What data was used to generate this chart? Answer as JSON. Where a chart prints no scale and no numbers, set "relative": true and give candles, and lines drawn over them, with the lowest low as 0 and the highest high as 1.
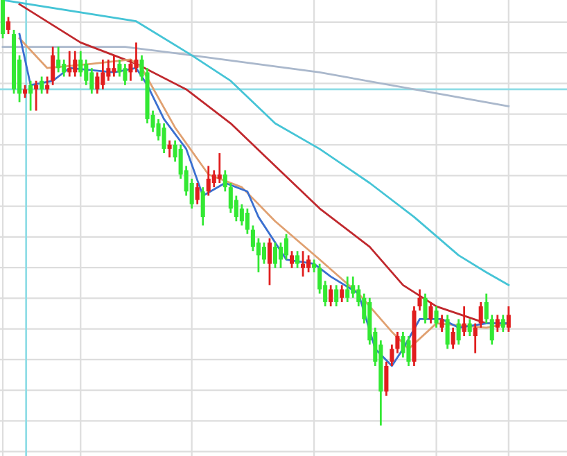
{
  "chart_data": {
    "type": "candlestick",
    "relative": true,
    "grid": true,
    "categories": [
      null,
      null,
      null,
      null,
      null,
      null,
      null,
      null,
      null,
      null,
      null,
      null,
      null,
      null,
      null,
      null,
      null,
      null,
      null,
      null,
      null,
      null,
      null,
      null,
      null,
      null,
      null,
      null,
      null,
      null,
      null,
      null,
      null,
      null,
      null,
      null,
      null,
      null,
      null,
      null,
      null,
      null,
      null,
      null,
      null,
      null,
      null,
      null,
      null,
      null,
      null,
      null,
      null,
      null,
      null,
      null,
      null,
      null,
      null,
      null,
      null,
      null,
      null,
      null,
      null,
      null,
      null,
      null,
      null,
      null,
      null,
      null,
      null,
      null,
      null,
      null,
      null,
      null,
      null,
      null,
      null,
      null,
      null,
      null,
      null,
      null,
      null,
      null,
      null,
      null,
      null,
      null
    ],
    "colors": [
      "#33e833",
      "#e01e1e",
      "#33e833",
      "#33e833",
      "#e01e1e",
      "#33e833",
      "#e01e1e",
      "#33e833",
      "#e01e1e",
      "#e01e1e",
      "#33e833",
      "#33e833",
      "#e01e1e",
      "#e01e1e",
      "#33e833",
      "#33e833",
      "#33e833",
      "#e01e1e",
      "#e01e1e",
      "#e01e1e",
      "#e01e1e",
      "#33e833",
      "#33e833",
      "#e01e1e",
      "#e01e1e",
      "#33e833",
      "#33e833",
      "#33e833",
      "#33e833",
      "#33e833",
      "#e01e1e",
      "#33e833",
      "#33e833",
      "#33e833",
      "#33e833",
      "#e01e1e",
      "#33e833",
      "#e01e1e",
      "#e01e1e",
      "#e01e1e",
      "#33e833",
      "#33e833",
      "#33e833",
      "#33e833",
      "#33e833",
      "#33e833",
      "#33e833",
      "#33e833",
      "#e01e1e",
      "#33e833",
      "#33e833",
      "#33e833",
      "#e01e1e",
      "#33e833",
      "#e01e1e",
      "#e01e1e",
      "#33e833",
      "#33e833",
      "#33e833",
      "#e01e1e",
      "#33e833",
      "#e01e1e",
      "#33e833",
      "#33e833",
      "#33e833",
      "#33e833",
      "#33e833",
      "#33e833",
      "#33e833",
      "#e01e1e",
      "#e01e1e",
      "#e01e1e",
      "#33e833",
      "#33e833",
      "#e01e1e",
      "#e01e1e",
      "#33e833",
      "#e01e1e",
      "#33e833",
      "#e01e1e",
      "#33e833",
      "#e01e1e",
      "#33e833",
      "#e01e1e",
      "#33e833",
      "#e01e1e",
      "#e01e1e",
      "#33e833",
      "#33e833",
      "#e01e1e",
      "#33e833",
      "#e01e1e"
    ],
    "ohlc": [
      [
        1.0,
        1.0,
        0.91,
        0.92
      ],
      [
        0.93,
        0.96,
        0.92,
        0.95
      ],
      [
        0.92,
        0.93,
        0.78,
        0.79
      ],
      [
        0.86,
        0.87,
        0.76,
        0.78
      ],
      [
        0.78,
        0.8,
        0.77,
        0.79
      ],
      [
        0.8,
        0.81,
        0.74,
        0.78
      ],
      [
        0.79,
        0.81,
        0.74,
        0.8
      ],
      [
        0.81,
        0.82,
        0.78,
        0.79
      ],
      [
        0.79,
        0.82,
        0.78,
        0.8
      ],
      [
        0.81,
        0.89,
        0.8,
        0.87
      ],
      [
        0.86,
        0.89,
        0.83,
        0.84
      ],
      [
        0.85,
        0.86,
        0.82,
        0.83
      ],
      [
        0.83,
        0.88,
        0.82,
        0.84
      ],
      [
        0.83,
        0.88,
        0.82,
        0.86
      ],
      [
        0.86,
        0.88,
        0.82,
        0.83
      ],
      [
        0.85,
        0.86,
        0.8,
        0.81
      ],
      [
        0.83,
        0.84,
        0.78,
        0.79
      ],
      [
        0.79,
        0.83,
        0.78,
        0.82
      ],
      [
        0.8,
        0.86,
        0.79,
        0.83
      ],
      [
        0.82,
        0.86,
        0.81,
        0.84
      ],
      [
        0.83,
        0.87,
        0.82,
        0.84
      ],
      [
        0.85,
        0.86,
        0.82,
        0.83
      ],
      [
        0.84,
        0.85,
        0.8,
        0.81
      ],
      [
        0.83,
        0.86,
        0.81,
        0.85
      ],
      [
        0.84,
        0.9,
        0.83,
        0.86
      ],
      [
        0.86,
        0.87,
        0.81,
        0.82
      ],
      [
        0.83,
        0.84,
        0.71,
        0.72
      ],
      [
        0.73,
        0.74,
        0.69,
        0.7
      ],
      [
        0.71,
        0.72,
        0.67,
        0.68
      ],
      [
        0.7,
        0.71,
        0.64,
        0.65
      ],
      [
        0.65,
        0.67,
        0.63,
        0.66
      ],
      [
        0.66,
        0.67,
        0.62,
        0.63
      ],
      [
        0.65,
        0.66,
        0.58,
        0.59
      ],
      [
        0.6,
        0.61,
        0.54,
        0.55
      ],
      [
        0.57,
        0.58,
        0.51,
        0.52
      ],
      [
        0.53,
        0.57,
        0.52,
        0.56
      ],
      [
        0.55,
        0.56,
        0.47,
        0.49
      ],
      [
        0.55,
        0.61,
        0.54,
        0.58
      ],
      [
        0.57,
        0.6,
        0.56,
        0.59
      ],
      [
        0.58,
        0.64,
        0.57,
        0.59
      ],
      [
        0.59,
        0.6,
        0.55,
        0.56
      ],
      [
        0.56,
        0.57,
        0.5,
        0.51
      ],
      [
        0.53,
        0.54,
        0.48,
        0.49
      ],
      [
        0.51,
        0.52,
        0.47,
        0.48
      ],
      [
        0.5,
        0.51,
        0.45,
        0.46
      ],
      [
        0.46,
        0.47,
        0.41,
        0.42
      ],
      [
        0.43,
        0.44,
        0.36,
        0.4
      ],
      [
        0.42,
        0.43,
        0.38,
        0.39
      ],
      [
        0.38,
        0.44,
        0.33,
        0.43
      ],
      [
        0.42,
        0.43,
        0.37,
        0.38
      ],
      [
        0.42,
        0.43,
        0.37,
        0.39
      ],
      [
        0.44,
        0.45,
        0.39,
        0.4
      ],
      [
        0.38,
        0.41,
        0.37,
        0.4
      ],
      [
        0.4,
        0.41,
        0.37,
        0.38
      ],
      [
        0.37,
        0.41,
        0.35,
        0.38
      ],
      [
        0.37,
        0.4,
        0.36,
        0.39
      ],
      [
        0.38,
        0.39,
        0.36,
        0.37
      ],
      [
        0.37,
        0.38,
        0.31,
        0.32
      ],
      [
        0.33,
        0.34,
        0.28,
        0.29
      ],
      [
        0.29,
        0.33,
        0.28,
        0.32
      ],
      [
        0.32,
        0.33,
        0.28,
        0.29
      ],
      [
        0.3,
        0.33,
        0.29,
        0.32
      ],
      [
        0.32,
        0.35,
        0.29,
        0.3
      ],
      [
        0.33,
        0.35,
        0.3,
        0.31
      ],
      [
        0.32,
        0.33,
        0.28,
        0.29
      ],
      [
        0.3,
        0.31,
        0.24,
        0.25
      ],
      [
        0.29,
        0.3,
        0.19,
        0.2
      ],
      [
        0.22,
        0.23,
        0.14,
        0.15
      ],
      [
        0.19,
        0.2,
        0.0,
        0.08
      ],
      [
        0.08,
        0.15,
        0.07,
        0.14
      ],
      [
        0.15,
        0.19,
        0.14,
        0.18
      ],
      [
        0.18,
        0.22,
        0.17,
        0.21
      ],
      [
        0.21,
        0.22,
        0.16,
        0.17
      ],
      [
        0.2,
        0.21,
        0.14,
        0.15
      ],
      [
        0.15,
        0.28,
        0.14,
        0.27
      ],
      [
        0.28,
        0.32,
        0.27,
        0.3
      ],
      [
        0.3,
        0.31,
        0.24,
        0.25
      ],
      [
        0.25,
        0.29,
        0.24,
        0.28
      ],
      [
        0.27,
        0.28,
        0.23,
        0.24
      ],
      [
        0.23,
        0.26,
        0.22,
        0.25
      ],
      [
        0.25,
        0.26,
        0.18,
        0.19
      ],
      [
        0.19,
        0.23,
        0.18,
        0.22
      ],
      [
        0.24,
        0.25,
        0.19,
        0.2
      ],
      [
        0.22,
        0.28,
        0.21,
        0.24
      ],
      [
        0.24,
        0.25,
        0.21,
        0.22
      ],
      [
        0.21,
        0.24,
        0.17,
        0.23
      ],
      [
        0.24,
        0.29,
        0.23,
        0.28
      ],
      [
        0.29,
        0.31,
        0.24,
        0.25
      ],
      [
        0.25,
        0.26,
        0.19,
        0.2
      ],
      [
        0.23,
        0.26,
        0.22,
        0.25
      ],
      [
        0.25,
        0.26,
        0.22,
        0.23
      ],
      [
        0.23,
        0.28,
        0.22,
        0.26
      ]
    ],
    "series": [
      {
        "type": "line",
        "color": "#aab8cc",
        "values": [
          0.89,
          null,
          null,
          null,
          null,
          null,
          null,
          null,
          null,
          null,
          null,
          null,
          null,
          null,
          null,
          null,
          null,
          null,
          null,
          null,
          null,
          null,
          0.89,
          null,
          null,
          null,
          null,
          null,
          null,
          null,
          null,
          null,
          null,
          null,
          0.87,
          null,
          null,
          null,
          null,
          null,
          null,
          null,
          null,
          null,
          null,
          null,
          null,
          null,
          null,
          null,
          null,
          null,
          null,
          null,
          null,
          null,
          null,
          0.83,
          null,
          null,
          null,
          null,
          null,
          null,
          null,
          null,
          null,
          null,
          null,
          null,
          null,
          null,
          null,
          null,
          0.79,
          null,
          null,
          null,
          null,
          null,
          null,
          null,
          null,
          null,
          null,
          null,
          null,
          null,
          null,
          null,
          null,
          0.75
        ]
      },
      {
        "type": "line",
        "color": "#45c4d6",
        "values": [
          1.0,
          null,
          null,
          null,
          null,
          null,
          null,
          null,
          null,
          null,
          null,
          null,
          null,
          null,
          null,
          null,
          null,
          null,
          null,
          null,
          null,
          null,
          null,
          null,
          0.95,
          null,
          null,
          null,
          null,
          null,
          null,
          null,
          null,
          null,
          0.87,
          null,
          null,
          null,
          null,
          null,
          null,
          0.81,
          null,
          null,
          null,
          null,
          null,
          null,
          null,
          0.71,
          null,
          null,
          null,
          null,
          null,
          null,
          null,
          0.65,
          null,
          null,
          null,
          null,
          null,
          null,
          null,
          null,
          0.57,
          null,
          null,
          null,
          null,
          null,
          null,
          null,
          0.49,
          null,
          null,
          null,
          null,
          null,
          null,
          null,
          0.4,
          null,
          null,
          null,
          null,
          0.36,
          null,
          null,
          null,
          0.33
        ]
      },
      {
        "type": "line",
        "color": "#c0282d",
        "values": [
          null,
          null,
          null,
          0.99,
          null,
          null,
          null,
          null,
          null,
          null,
          null,
          null,
          null,
          null,
          0.9,
          null,
          null,
          null,
          null,
          null,
          null,
          null,
          null,
          null,
          0.85,
          null,
          null,
          null,
          null,
          null,
          null,
          null,
          null,
          0.79,
          null,
          null,
          null,
          null,
          null,
          null,
          null,
          0.71,
          null,
          null,
          null,
          null,
          null,
          null,
          null,
          0.61,
          null,
          null,
          null,
          null,
          null,
          null,
          null,
          0.51,
          null,
          null,
          null,
          null,
          null,
          null,
          null,
          null,
          0.42,
          null,
          null,
          null,
          null,
          null,
          0.33,
          null,
          null,
          null,
          null,
          null,
          0.28,
          null,
          null,
          null,
          null,
          null,
          null,
          null,
          null,
          0.24,
          null,
          null,
          null,
          0.24
        ]
      },
      {
        "type": "line",
        "color": "#e0a070",
        "values": [
          null,
          null,
          null,
          0.91,
          null,
          null,
          null,
          null,
          0.84,
          null,
          null,
          null,
          null,
          null,
          null,
          null,
          0.85,
          null,
          null,
          null,
          null,
          null,
          null,
          0.86,
          null,
          0.84,
          null,
          null,
          null,
          null,
          null,
          0.7,
          null,
          null,
          null,
          null,
          null,
          0.59,
          null,
          null,
          null,
          null,
          null,
          0.56,
          null,
          null,
          null,
          null,
          null,
          0.48,
          null,
          null,
          null,
          null,
          null,
          null,
          null,
          0.39,
          null,
          null,
          null,
          null,
          null,
          null,
          0.31,
          null,
          null,
          null,
          null,
          null,
          0.22,
          null,
          null,
          0.18,
          null,
          null,
          null,
          null,
          0.24,
          null,
          null,
          null,
          null,
          null,
          null,
          null,
          null,
          0.23,
          null,
          null,
          null,
          0.24
        ]
      },
      {
        "type": "line",
        "color": "#3a6fd0",
        "values": [
          null,
          null,
          null,
          0.92,
          null,
          0.8,
          null,
          null,
          null,
          0.81,
          null,
          null,
          0.84,
          null,
          null,
          null,
          null,
          null,
          null,
          null,
          0.83,
          null,
          null,
          null,
          0.84,
          null,
          0.8,
          null,
          null,
          0.72,
          null,
          null,
          null,
          0.65,
          null,
          null,
          0.54,
          null,
          null,
          null,
          0.57,
          null,
          null,
          null,
          0.55,
          null,
          0.49,
          null,
          null,
          null,
          null,
          0.39,
          null,
          null,
          null,
          null,
          0.38,
          null,
          null,
          0.35,
          null,
          null,
          null,
          null,
          0.31,
          null,
          null,
          0.18,
          null,
          null,
          0.14,
          null,
          0.18,
          null,
          null,
          0.25,
          null,
          null,
          null,
          0.25,
          null,
          null,
          0.23,
          null,
          null,
          null,
          null,
          0.24,
          null,
          null,
          null,
          0.24
        ]
      }
    ],
    "ref_lines": [
      {
        "axis": "y",
        "value": 0.79,
        "color": "#8fdde6"
      }
    ]
  }
}
